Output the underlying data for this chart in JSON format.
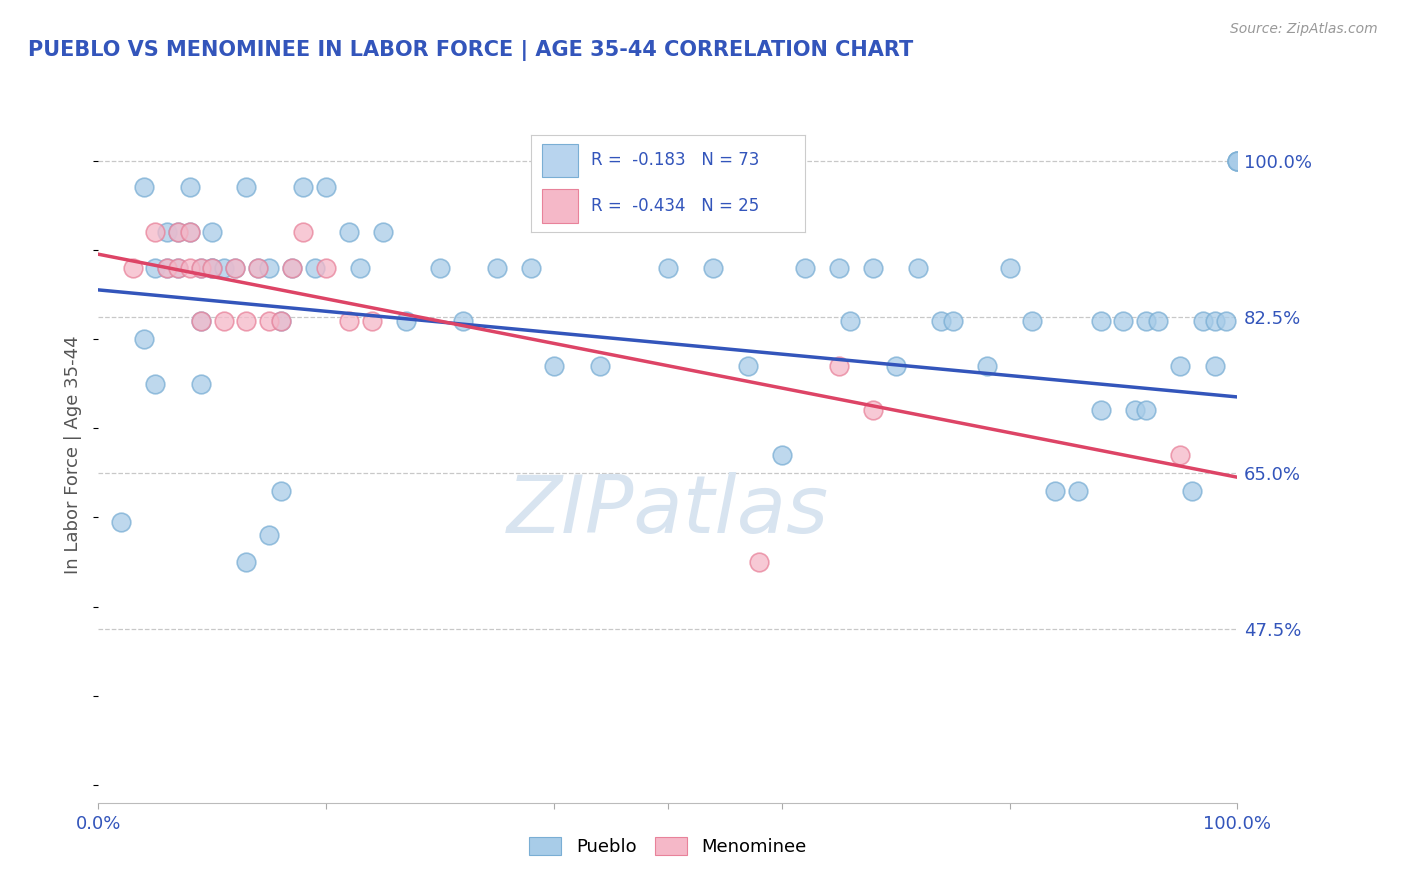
{
  "title": "PUEBLO VS MENOMINEE IN LABOR FORCE | AGE 35-44 CORRELATION CHART",
  "source_text": "Source: ZipAtlas.com",
  "ylabel": "In Labor Force | Age 35-44",
  "xlim": [
    0.0,
    1.0
  ],
  "ylim": [
    0.28,
    1.06
  ],
  "yticks": [
    0.475,
    0.65,
    0.825,
    1.0
  ],
  "ytick_labels": [
    "47.5%",
    "65.0%",
    "82.5%",
    "100.0%"
  ],
  "xtick_positions": [
    0.0,
    0.5,
    1.0
  ],
  "xtick_labels": [
    "0.0%",
    "",
    "100.0%"
  ],
  "pueblo_R": -0.183,
  "pueblo_N": 73,
  "menominee_R": -0.434,
  "menominee_N": 25,
  "pueblo_color": "#a8cce8",
  "pueblo_edge_color": "#7aaed4",
  "menominee_color": "#f5b8c8",
  "menominee_edge_color": "#e8829a",
  "line_blue": "#3355bb",
  "line_pink": "#dd4466",
  "legend_box_blue": "#b8d4ee",
  "legend_box_pink": "#f5b8c8",
  "background_color": "#ffffff",
  "grid_color": "#bbbbbb",
  "title_color": "#3355bb",
  "label_color": "#555555",
  "watermark_color": "#d8e4f0",
  "pueblo_x": [
    0.02,
    0.04,
    0.05,
    0.06,
    0.06,
    0.07,
    0.07,
    0.08,
    0.08,
    0.09,
    0.09,
    0.1,
    0.1,
    0.1,
    0.11,
    0.12,
    0.13,
    0.14,
    0.15,
    0.16,
    0.17,
    0.18,
    0.19,
    0.2,
    0.22,
    0.23,
    0.25,
    0.27,
    0.3,
    0.32,
    0.35,
    0.38,
    0.4,
    0.44,
    0.5,
    0.54,
    0.57,
    0.6,
    0.62,
    0.65,
    0.66,
    0.68,
    0.7,
    0.72,
    0.74,
    0.75,
    0.78,
    0.8,
    0.82,
    0.84,
    0.86,
    0.88,
    0.88,
    0.9,
    0.91,
    0.92,
    0.92,
    0.93,
    0.95,
    0.96,
    0.97,
    0.98,
    0.98,
    0.99,
    1.0,
    1.0,
    1.0,
    0.04,
    0.05,
    0.09,
    0.13,
    0.15,
    0.16
  ],
  "pueblo_y": [
    0.595,
    0.97,
    0.88,
    0.92,
    0.88,
    0.92,
    0.88,
    0.92,
    0.97,
    0.88,
    0.82,
    0.88,
    0.92,
    0.88,
    0.88,
    0.88,
    0.97,
    0.88,
    0.88,
    0.82,
    0.88,
    0.97,
    0.88,
    0.97,
    0.92,
    0.88,
    0.92,
    0.82,
    0.88,
    0.82,
    0.88,
    0.88,
    0.77,
    0.77,
    0.88,
    0.88,
    0.77,
    0.67,
    0.88,
    0.88,
    0.82,
    0.88,
    0.77,
    0.88,
    0.82,
    0.82,
    0.77,
    0.88,
    0.82,
    0.63,
    0.63,
    0.82,
    0.72,
    0.82,
    0.72,
    0.82,
    0.72,
    0.82,
    0.77,
    0.63,
    0.82,
    0.82,
    0.77,
    0.82,
    1.0,
    1.0,
    1.0,
    0.8,
    0.75,
    0.75,
    0.55,
    0.58,
    0.63
  ],
  "menominee_x": [
    0.03,
    0.05,
    0.06,
    0.07,
    0.07,
    0.08,
    0.08,
    0.09,
    0.09,
    0.1,
    0.11,
    0.12,
    0.13,
    0.14,
    0.15,
    0.16,
    0.17,
    0.18,
    0.2,
    0.22,
    0.24,
    0.58,
    0.65,
    0.68,
    0.95
  ],
  "menominee_y": [
    0.88,
    0.92,
    0.88,
    0.92,
    0.88,
    0.92,
    0.88,
    0.88,
    0.82,
    0.88,
    0.82,
    0.88,
    0.82,
    0.88,
    0.82,
    0.82,
    0.88,
    0.92,
    0.88,
    0.82,
    0.82,
    0.55,
    0.77,
    0.72,
    0.67
  ],
  "blue_line_x0": 0.0,
  "blue_line_y0": 0.855,
  "blue_line_x1": 1.0,
  "blue_line_y1": 0.735,
  "pink_line_x0": 0.0,
  "pink_line_y0": 0.895,
  "pink_line_x1": 1.0,
  "pink_line_y1": 0.645
}
